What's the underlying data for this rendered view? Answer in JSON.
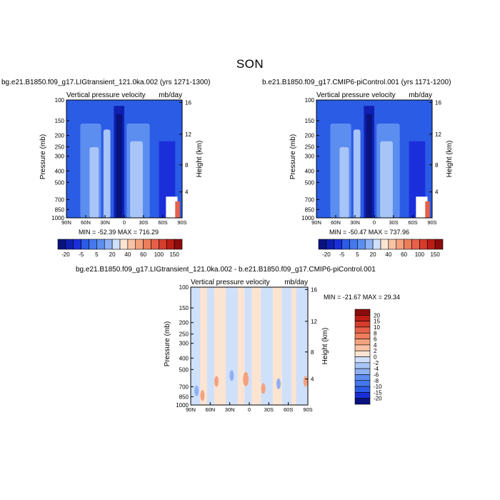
{
  "figure": {
    "title": "SON",
    "colors": {
      "deep_blue": "#1a2fd9",
      "mid_blue": "#2b5ce6",
      "light_blue": "#5c8ef0",
      "pale_blue": "#a9c4f6",
      "paler_blue": "#cfe0fb",
      "pale_orange": "#fbe4d2"
    }
  },
  "chart_data": [
    {
      "type": "heatmap",
      "title_left": "bg.e21.B1850.f09_g17.LIGtransient_121.0ka.002 (yrs 1271-1300)",
      "subtitle_left": "Vertical pressure velocity",
      "subtitle_right": "mb/day",
      "ylabel": "Pressure (mb)",
      "y2label": "Height (km)",
      "xticks": [
        "90N",
        "60N",
        "30N",
        "0",
        "30S",
        "60S",
        "90S"
      ],
      "yticks": [
        100,
        150,
        200,
        250,
        300,
        400,
        500,
        700,
        850,
        1000
      ],
      "y2ticks": [
        4,
        8,
        12,
        16
      ],
      "stats": "MIN = -52.39   MAX = 716.29",
      "colorbar_labels": [
        "-20",
        "-5",
        "5",
        "20",
        "40",
        "60",
        "100",
        "150"
      ]
    },
    {
      "type": "heatmap",
      "title_left": "b.e21.B1850.f09_g17.CMIP6-piControl.001 (yrs 1171-1200)",
      "subtitle_left": "Vertical pressure velocity",
      "subtitle_right": "mb/day",
      "ylabel": "Pressure (mb)",
      "y2label": "Height (km)",
      "xticks": [
        "90N",
        "60N",
        "30N",
        "0",
        "30S",
        "60S",
        "90S"
      ],
      "yticks": [
        100,
        150,
        200,
        250,
        300,
        400,
        500,
        700,
        850,
        1000
      ],
      "y2ticks": [
        4,
        8,
        12,
        16
      ],
      "stats": "MIN = -50.47   MAX = 737.96",
      "colorbar_labels": [
        "-20",
        "-5",
        "5",
        "20",
        "40",
        "60",
        "100",
        "150"
      ]
    },
    {
      "type": "heatmap",
      "title_left": "bg.e21.B1850.f09_g17.LIGtransient_121.0ka.002 - b.e21.B1850.f09_g17.CMIP6-piControl.001",
      "subtitle_left": "Vertical pressure velocity",
      "subtitle_right": "mb/day",
      "ylabel": "Pressure (mb)",
      "y2label": "Height (km)",
      "xticks": [
        "90N",
        "60N",
        "30N",
        "0",
        "30S",
        "60S",
        "90S"
      ],
      "yticks": [
        100,
        150,
        200,
        250,
        300,
        400,
        500,
        700,
        850,
        1000
      ],
      "y2ticks": [
        4,
        8,
        12,
        16
      ],
      "stats": "MIN = -21.67   MAX = 29.34",
      "colorbar_labels": [
        "20",
        "15",
        "10",
        "8",
        "6",
        "4",
        "2",
        "0",
        "-2",
        "-4",
        "-6",
        "-8",
        "-10",
        "-15",
        "-20"
      ]
    }
  ]
}
